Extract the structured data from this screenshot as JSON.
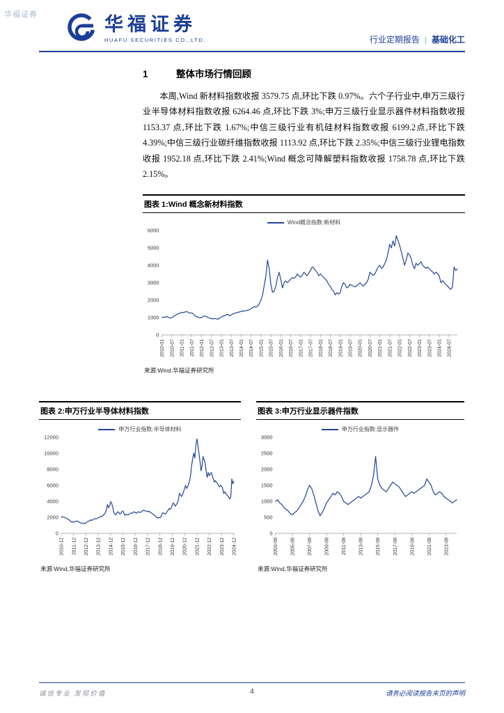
{
  "watermark": "华福证券",
  "header": {
    "logo_cn": "华福证券",
    "logo_en": "HUAFU SECURITIES CO.,LTD.",
    "report_type": "行业定期报告",
    "separator": "|",
    "industry": "基础化工"
  },
  "section": {
    "number": "1",
    "title": "整体市场行情回顾",
    "paragraph": "本周,Wind 新材料指数收报 3579.75 点,环比下跌 0.97%。六个子行业中,申万三级行业半导体材料指数收报 6264.46 点,环比下跌 3%;申万三级行业显示器件材料指数收报 1153.37 点,环比下跌 1.67%;中信三级行业有机硅材料指数收报 6199.2点,环比下跌 4.39%;中信三级行业碳纤维指数收报 1113.92 点,环比下跌 2.35%;中信三级行业锂电指数收报 1952.18 点,环比下跌 2.41%;Wind 概念可降解塑料指数收报 1758.78 点,环比下跌 2.15%。"
  },
  "chart_data": [
    {
      "type": "line",
      "caption": "图表 1:Wind 概念新材料指数",
      "legend": "Wind概念指数:新材料",
      "source": "来源:Wind,华福证券研究所",
      "line_color": "#1f4496",
      "ylim": [
        0,
        6000
      ],
      "yticks": [
        0,
        1000,
        2000,
        3000,
        4000,
        5000,
        6000
      ],
      "x_range": [
        "2010-01",
        "2024-12"
      ],
      "xtick_every": 6,
      "xlabels": [
        "2010-01",
        "2010-07",
        "2011-01",
        "2011-07",
        "2012-01",
        "2012-07",
        "2013-01",
        "2013-07",
        "2014-01",
        "2014-07",
        "2015-01",
        "2015-07",
        "2016-01",
        "2016-07",
        "2017-01",
        "2017-07",
        "2018-01",
        "2018-07",
        "2019-01",
        "2019-07",
        "2020-01",
        "2020-07",
        "2021-01",
        "2021-07",
        "2022-01",
        "2022-07",
        "2023-01",
        "2023-07",
        "2024-01",
        "2024-07"
      ],
      "values": [
        1000,
        1030,
        1010,
        1060,
        1000,
        960,
        1000,
        1070,
        1120,
        1170,
        1220,
        1250,
        1300,
        1280,
        1320,
        1340,
        1300,
        1250,
        1270,
        1200,
        1100,
        1050,
        1020,
        980,
        1000,
        1060,
        1090,
        1050,
        1000,
        960,
        940,
        920,
        950,
        930,
        900,
        980,
        1020,
        1080,
        1100,
        1150,
        1190,
        1100,
        1150,
        1200,
        1240,
        1270,
        1300,
        1320,
        1350,
        1380,
        1360,
        1400,
        1420,
        1450,
        1500,
        1570,
        1620,
        1600,
        1650,
        1800,
        2000,
        2300,
        2850,
        3400,
        4300,
        3800,
        2900,
        2450,
        2500,
        2800,
        3300,
        3600,
        3200,
        2700,
        3000,
        3100,
        3000,
        3100,
        3200,
        3300,
        3250,
        3320,
        3500,
        3400,
        3320,
        3420,
        3600,
        3500,
        3400,
        3560,
        3700,
        3900,
        3850,
        3700,
        3600,
        3400,
        3500,
        3400,
        3300,
        3200,
        3100,
        2900,
        2800,
        2600,
        2500,
        2300,
        2420,
        2350,
        2420,
        2800,
        3000,
        2900,
        2700,
        2760,
        2900,
        2850,
        2800,
        2760,
        2820,
        2900,
        3000,
        2900,
        2800,
        2920,
        3000,
        3200,
        3600,
        3500,
        3420,
        3500,
        3700,
        3900,
        4000,
        3820,
        3900,
        4100,
        4300,
        4700,
        5200,
        5000,
        5400,
        5100,
        5700,
        5450,
        5150,
        4800,
        4400,
        4000,
        4300,
        4700,
        4600,
        4400,
        4000,
        3800,
        4120,
        4000,
        4100,
        4200,
        4000,
        3900,
        3820,
        3900,
        3800,
        3700,
        3620,
        3500,
        3600,
        3520,
        3400,
        3000,
        3120,
        3000,
        2900,
        2820,
        2700,
        2620,
        2750,
        3900,
        3700,
        3800
      ]
    },
    {
      "type": "line",
      "caption": "图表 2:申万行业半导体材料指数",
      "legend": "申万行业指数:半导体材料",
      "source": "来源:Wind,华福证券研究所",
      "line_color": "#1f4496",
      "ylim": [
        0,
        12000
      ],
      "yticks": [
        0,
        2000,
        4000,
        6000,
        8000,
        10000,
        12000
      ],
      "x_range": [
        "2010-12",
        "2024-12"
      ],
      "xtick_every": 12,
      "xlabels": [
        "2010-12",
        "2011-12",
        "2012-12",
        "2013-12",
        "2014-12",
        "2015-12",
        "2016-12",
        "2017-12",
        "2018-12",
        "2019-12",
        "2020-12",
        "2021-12",
        "2022-12",
        "2023-12",
        "2024-12"
      ],
      "values": [
        2000,
        2080,
        2040,
        2000,
        1950,
        1900,
        1800,
        1750,
        1650,
        1500,
        1420,
        1450,
        1400,
        1450,
        1500,
        1550,
        1500,
        1420,
        1350,
        1300,
        1250,
        1300,
        1250,
        1200,
        1350,
        1400,
        1500,
        1550,
        1600,
        1700,
        1620,
        1700,
        1800,
        1850,
        1800,
        1900,
        1950,
        2000,
        2100,
        2050,
        2200,
        2300,
        2400,
        2600,
        3000,
        3600,
        3200,
        3400,
        3950,
        3800,
        3300,
        2700,
        2400,
        2300,
        2500,
        2700,
        2600,
        2400,
        2500,
        2700,
        2800,
        2500,
        2250,
        2400,
        2350,
        2300,
        2400,
        2500,
        2550,
        2500,
        2600,
        2700,
        2600,
        2500,
        2600,
        2700,
        2650,
        2600,
        2700,
        2800,
        2900,
        2850,
        2800,
        2750,
        2700,
        2800,
        2700,
        2600,
        2500,
        2450,
        2300,
        2250,
        2100,
        2000,
        1900,
        2000,
        1950,
        2050,
        2400,
        2600,
        2500,
        2400,
        2500,
        2700,
        2900,
        3100,
        3000,
        3200,
        3500,
        3800,
        3600,
        3400,
        3600,
        3800,
        4200,
        5000,
        4800,
        4600,
        4800,
        5200,
        5600,
        6000,
        5600,
        5800,
        6200,
        6600,
        7400,
        8600,
        9400,
        10000,
        9400,
        11000,
        11800,
        11000,
        10000,
        9000,
        7800,
        8400,
        9600,
        9200,
        8800,
        7800,
        7000,
        7600,
        7200,
        7400,
        7600,
        7200,
        6800,
        6400,
        6600,
        6400,
        6200,
        6000,
        5800,
        6000,
        5900,
        5600,
        5000,
        5200,
        5000,
        4800,
        4700,
        4500,
        4300,
        4600,
        6800,
        6200,
        6500
      ]
    },
    {
      "type": "line",
      "caption": "图表 3:申万行业显示器件指数",
      "legend": "申万行业指数:显示器件",
      "source": "来源:Wind,华福证券研究所",
      "line_color": "#1f4496",
      "ylim": [
        0,
        3000
      ],
      "yticks": [
        0,
        500,
        1000,
        1500,
        2000,
        2500,
        3000
      ],
      "x_range": [
        "2003-08",
        "2024-11"
      ],
      "xtick_every": 8,
      "xlabels": [
        "2003-08",
        "2005-08",
        "2007-08",
        "2009-08",
        "2011-08",
        "2013-08",
        "2015-08",
        "2017-08",
        "2019-08",
        "2021-08",
        "2023-08"
      ],
      "values": [
        1000,
        1050,
        950,
        900,
        800,
        750,
        700,
        620,
        580,
        650,
        700,
        780,
        900,
        1000,
        1150,
        1350,
        1500,
        1400,
        1200,
        950,
        700,
        550,
        650,
        800,
        950,
        1050,
        1150,
        1250,
        1200,
        1300,
        1250,
        1150,
        1000,
        950,
        900,
        950,
        1000,
        1050,
        1100,
        1150,
        1100,
        1150,
        1200,
        1250,
        1300,
        1500,
        1800,
        2400,
        1700,
        1500,
        1400,
        1350,
        1300,
        1400,
        1500,
        1600,
        1550,
        1500,
        1450,
        1350,
        1250,
        1150,
        1200,
        1250,
        1300,
        1250,
        1300,
        1350,
        1400,
        1450,
        1500,
        1700,
        1600,
        1500,
        1300,
        1200,
        1250,
        1300,
        1250,
        1150,
        1100,
        1050,
        1000,
        950,
        1000,
        1050
      ]
    }
  ],
  "footer": {
    "left": "诚信专业 发现价值",
    "page": "4",
    "right": "请务必阅读报告末页的声明"
  },
  "colors": {
    "brand_blue": "#1b3e97",
    "line_blue": "#1f4496",
    "caption_border": "#000000",
    "footer_gray": "#8a8f9b"
  }
}
